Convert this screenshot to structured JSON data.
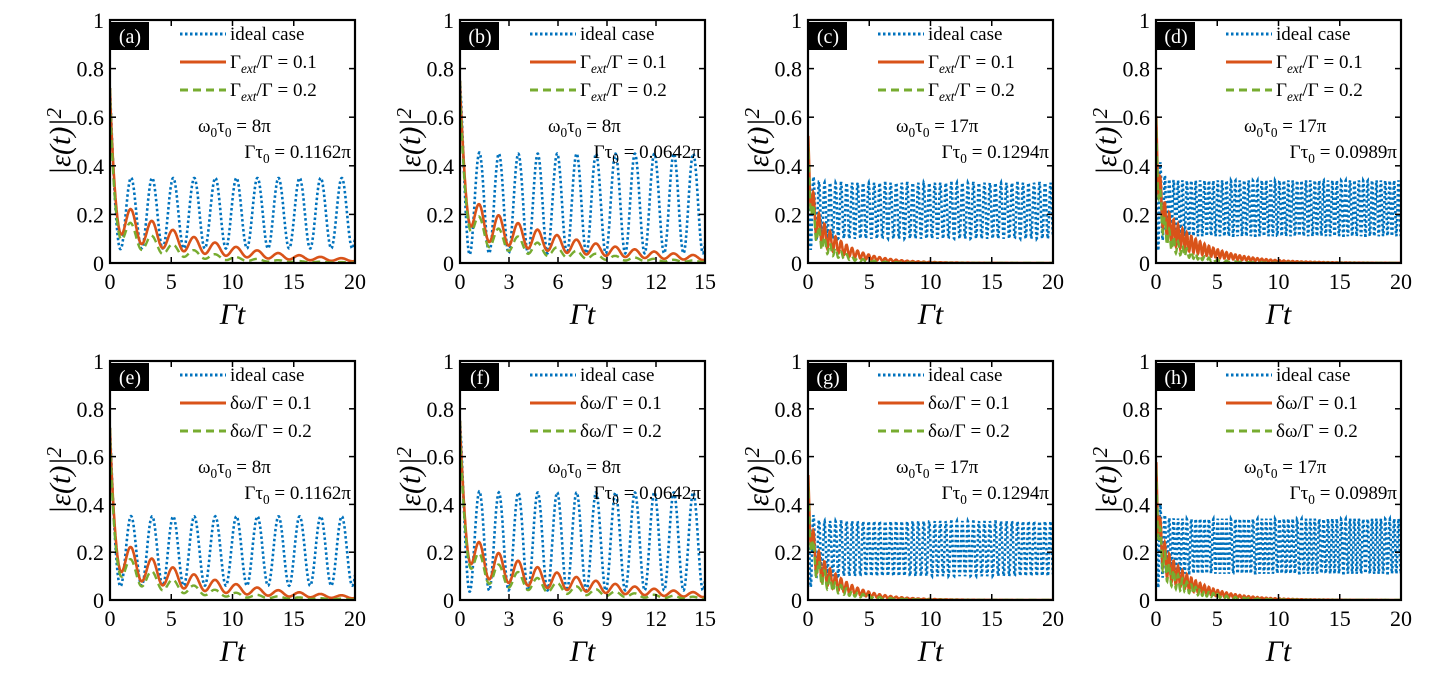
{
  "chart_data": [
    {
      "panel": "(a)",
      "type": "line",
      "xlim": [
        0,
        20
      ],
      "ylim": [
        0,
        1
      ],
      "xticks": [
        0,
        5,
        10,
        15,
        20
      ],
      "yticks": [
        0,
        0.2,
        0.4,
        0.6,
        0.8,
        1
      ],
      "xlabel": "Γt",
      "ylabel": "|ε(t)|²",
      "legend": [
        "ideal case",
        "Γext/Γ = 0.1",
        "Γext/Γ = 0.2"
      ],
      "params": [
        "ω0τ0 = 8π",
        "Γτ0 = 0.1162π"
      ],
      "model": {
        "period": 1.72,
        "ideal_hi": 0.35,
        "ideal_lo": 0.06,
        "dec1": 0.14,
        "dec2": 0.22,
        "peak": 0.72
      }
    },
    {
      "panel": "(b)",
      "type": "line",
      "xlim": [
        0,
        15
      ],
      "ylim": [
        0,
        1
      ],
      "xticks": [
        0,
        3,
        6,
        9,
        12,
        15
      ],
      "yticks": [
        0,
        0.2,
        0.4,
        0.6,
        0.8,
        1
      ],
      "xlabel": "Γt",
      "ylabel": "|ε(t)|²",
      "legend": [
        "ideal case",
        "Γext/Γ = 0.1",
        "Γext/Γ = 0.2"
      ],
      "params": [
        "ω0τ0 = 8π",
        "Γτ0 = 0.0642π"
      ],
      "model": {
        "period": 1.19,
        "ideal_hi": 0.45,
        "ideal_lo": 0.04,
        "dec1": 0.15,
        "dec2": 0.22,
        "peak": 0.75
      }
    },
    {
      "panel": "(c)",
      "type": "line",
      "xlim": [
        0,
        20
      ],
      "ylim": [
        0,
        1
      ],
      "xticks": [
        0,
        5,
        10,
        15,
        20
      ],
      "yticks": [
        0,
        0.2,
        0.4,
        0.6,
        0.8,
        1
      ],
      "xlabel": "Γt",
      "ylabel": "|ε(t)|²",
      "legend": [
        "ideal case",
        "Γext/Γ = 0.1",
        "Γext/Γ = 0.2"
      ],
      "params": [
        "ω0τ0 = 17π",
        "Γτ0 = 0.1294π"
      ],
      "model": {
        "period": 0.45,
        "ideal_hi": 0.33,
        "ideal_lo": 0.1,
        "dec1": 0.42,
        "dec2": 0.6,
        "peak": 0.45
      }
    },
    {
      "panel": "(d)",
      "type": "line",
      "xlim": [
        0,
        20
      ],
      "ylim": [
        0,
        1
      ],
      "xticks": [
        0,
        5,
        10,
        15,
        20
      ],
      "yticks": [
        0,
        0.2,
        0.4,
        0.6,
        0.8,
        1
      ],
      "xlabel": "Γt",
      "ylabel": "|ε(t)|²",
      "legend": [
        "ideal case",
        "Γext/Γ = 0.1",
        "Γext/Γ = 0.2"
      ],
      "params": [
        "ω0τ0 = 17π",
        "Γτ0 = 0.0989π"
      ],
      "model": {
        "period": 0.36,
        "ideal_hi": 0.34,
        "ideal_lo": 0.11,
        "dec1": 0.32,
        "dec2": 0.55,
        "peak": 0.6
      }
    },
    {
      "panel": "(e)",
      "type": "line",
      "xlim": [
        0,
        20
      ],
      "ylim": [
        0,
        1
      ],
      "xticks": [
        0,
        5,
        10,
        15,
        20
      ],
      "yticks": [
        0,
        0.2,
        0.4,
        0.6,
        0.8,
        1
      ],
      "xlabel": "Γt",
      "ylabel": "|ε(t)|²",
      "legend": [
        "ideal case",
        "δω/Γ = 0.1",
        "δω/Γ = 0.2"
      ],
      "params": [
        "ω0τ0 = 8π",
        "Γτ0 = 0.1162π"
      ],
      "model": {
        "period": 1.72,
        "ideal_hi": 0.35,
        "ideal_lo": 0.06,
        "dec1": 0.14,
        "dec2": 0.2,
        "peak": 0.72
      }
    },
    {
      "panel": "(f)",
      "type": "line",
      "xlim": [
        0,
        15
      ],
      "ylim": [
        0,
        1
      ],
      "xticks": [
        0,
        3,
        6,
        9,
        12,
        15
      ],
      "yticks": [
        0,
        0.2,
        0.4,
        0.6,
        0.8,
        1
      ],
      "xlabel": "Γt",
      "ylabel": "|ε(t)|²",
      "legend": [
        "ideal case",
        "δω/Γ = 0.1",
        "δω/Γ = 0.2"
      ],
      "params": [
        "ω0τ0 = 8π",
        "Γτ0 = 0.0642π"
      ],
      "model": {
        "period": 1.19,
        "ideal_hi": 0.45,
        "ideal_lo": 0.04,
        "dec1": 0.15,
        "dec2": 0.2,
        "peak": 0.75
      }
    },
    {
      "panel": "(g)",
      "type": "line",
      "xlim": [
        0,
        20
      ],
      "ylim": [
        0,
        1
      ],
      "xticks": [
        0,
        5,
        10,
        15,
        20
      ],
      "yticks": [
        0,
        0.2,
        0.4,
        0.6,
        0.8,
        1
      ],
      "xlabel": "Γt",
      "ylabel": "|ε(t)|²",
      "legend": [
        "ideal case",
        "δω/Γ = 0.1",
        "δω/Γ = 0.2"
      ],
      "params": [
        "ω0τ0 = 17π",
        "Γτ0 = 0.1294π"
      ],
      "model": {
        "period": 0.45,
        "ideal_hi": 0.33,
        "ideal_lo": 0.1,
        "dec1": 0.42,
        "dec2": 0.5,
        "peak": 0.45
      }
    },
    {
      "panel": "(h)",
      "type": "line",
      "xlim": [
        0,
        20
      ],
      "ylim": [
        0,
        1
      ],
      "xticks": [
        0,
        5,
        10,
        15,
        20
      ],
      "yticks": [
        0,
        0.2,
        0.4,
        0.6,
        0.8,
        1
      ],
      "xlabel": "Γt",
      "ylabel": "|ε(t)|²",
      "legend": [
        "ideal case",
        "δω/Γ = 0.1",
        "δω/Γ = 0.2"
      ],
      "params": [
        "ω0τ0 = 17π",
        "Γτ0 = 0.0989π"
      ],
      "model": {
        "period": 0.36,
        "ideal_hi": 0.34,
        "ideal_lo": 0.11,
        "dec1": 0.38,
        "dec2": 0.45,
        "peak": 0.55
      }
    }
  ],
  "colors": {
    "ideal": "#0072BD",
    "series1": "#D95319",
    "series2": "#77AC30",
    "axis": "#000000"
  }
}
